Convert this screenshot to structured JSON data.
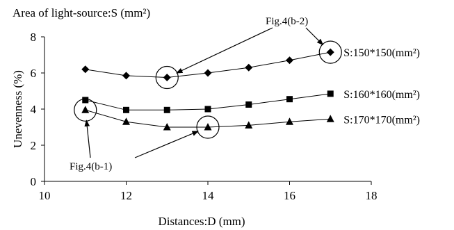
{
  "chart_data": {
    "type": "line",
    "title": "Area of light-source:S (mm²)",
    "xlabel": "Distances:D (mm)",
    "ylabel": "Unevenness (%)",
    "xlim": [
      10,
      18
    ],
    "ylim": [
      0,
      8
    ],
    "xticks": [
      10,
      12,
      14,
      16,
      18
    ],
    "yticks": [
      0,
      2,
      4,
      6,
      8
    ],
    "grid": false,
    "x": [
      11,
      12,
      13,
      14,
      15,
      16,
      17
    ],
    "series": [
      {
        "name": "S:150*150(mm²)",
        "marker": "diamond",
        "values": [
          6.2,
          5.85,
          5.75,
          6.0,
          6.3,
          6.7,
          7.15
        ]
      },
      {
        "name": "S:160*160(mm²)",
        "marker": "square",
        "values": [
          4.5,
          3.95,
          3.95,
          4.0,
          4.25,
          4.55,
          4.85
        ]
      },
      {
        "name": "S:170*170(mm²)",
        "marker": "triangle",
        "values": [
          3.95,
          3.3,
          3.0,
          3.0,
          3.1,
          3.3,
          3.45
        ]
      }
    ],
    "annotations": [
      {
        "text": "Fig.4(b-2)",
        "circled_points": [
          [
            13,
            5.75
          ],
          [
            17,
            7.15
          ]
        ]
      },
      {
        "text": "Fig.4(b-1)",
        "circled_points": [
          [
            11,
            3.95
          ],
          [
            14,
            3.0
          ]
        ]
      }
    ]
  }
}
